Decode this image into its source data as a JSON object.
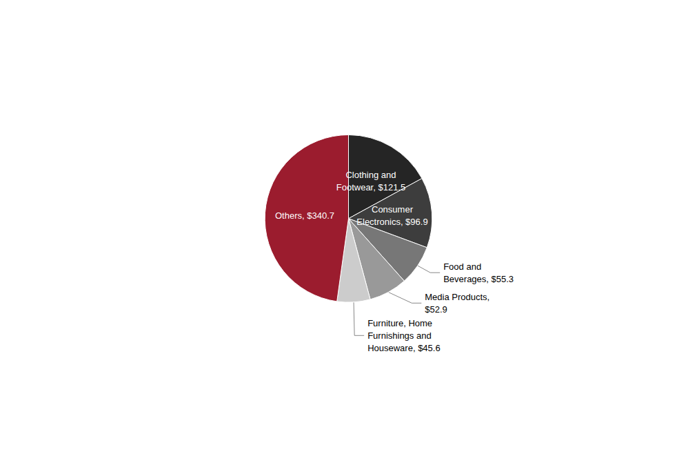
{
  "chart_data": {
    "type": "pie",
    "categories": [
      "Clothing and\nFootwear, $121.5",
      "Consumer\nElectronics, $96.9",
      "Food and\nBeverages, $55.3",
      "Media Products,\n$52.9",
      "Furniture, Home\nFurnishings and\nHouseware, $45.6",
      "Others, $340.7"
    ],
    "values": [
      121.5,
      96.9,
      55.3,
      52.9,
      45.6,
      340.7
    ],
    "colors": [
      "#252525",
      "#3d3d3d",
      "#777777",
      "#999999",
      "#cccccc",
      "#9b1c2e"
    ]
  }
}
